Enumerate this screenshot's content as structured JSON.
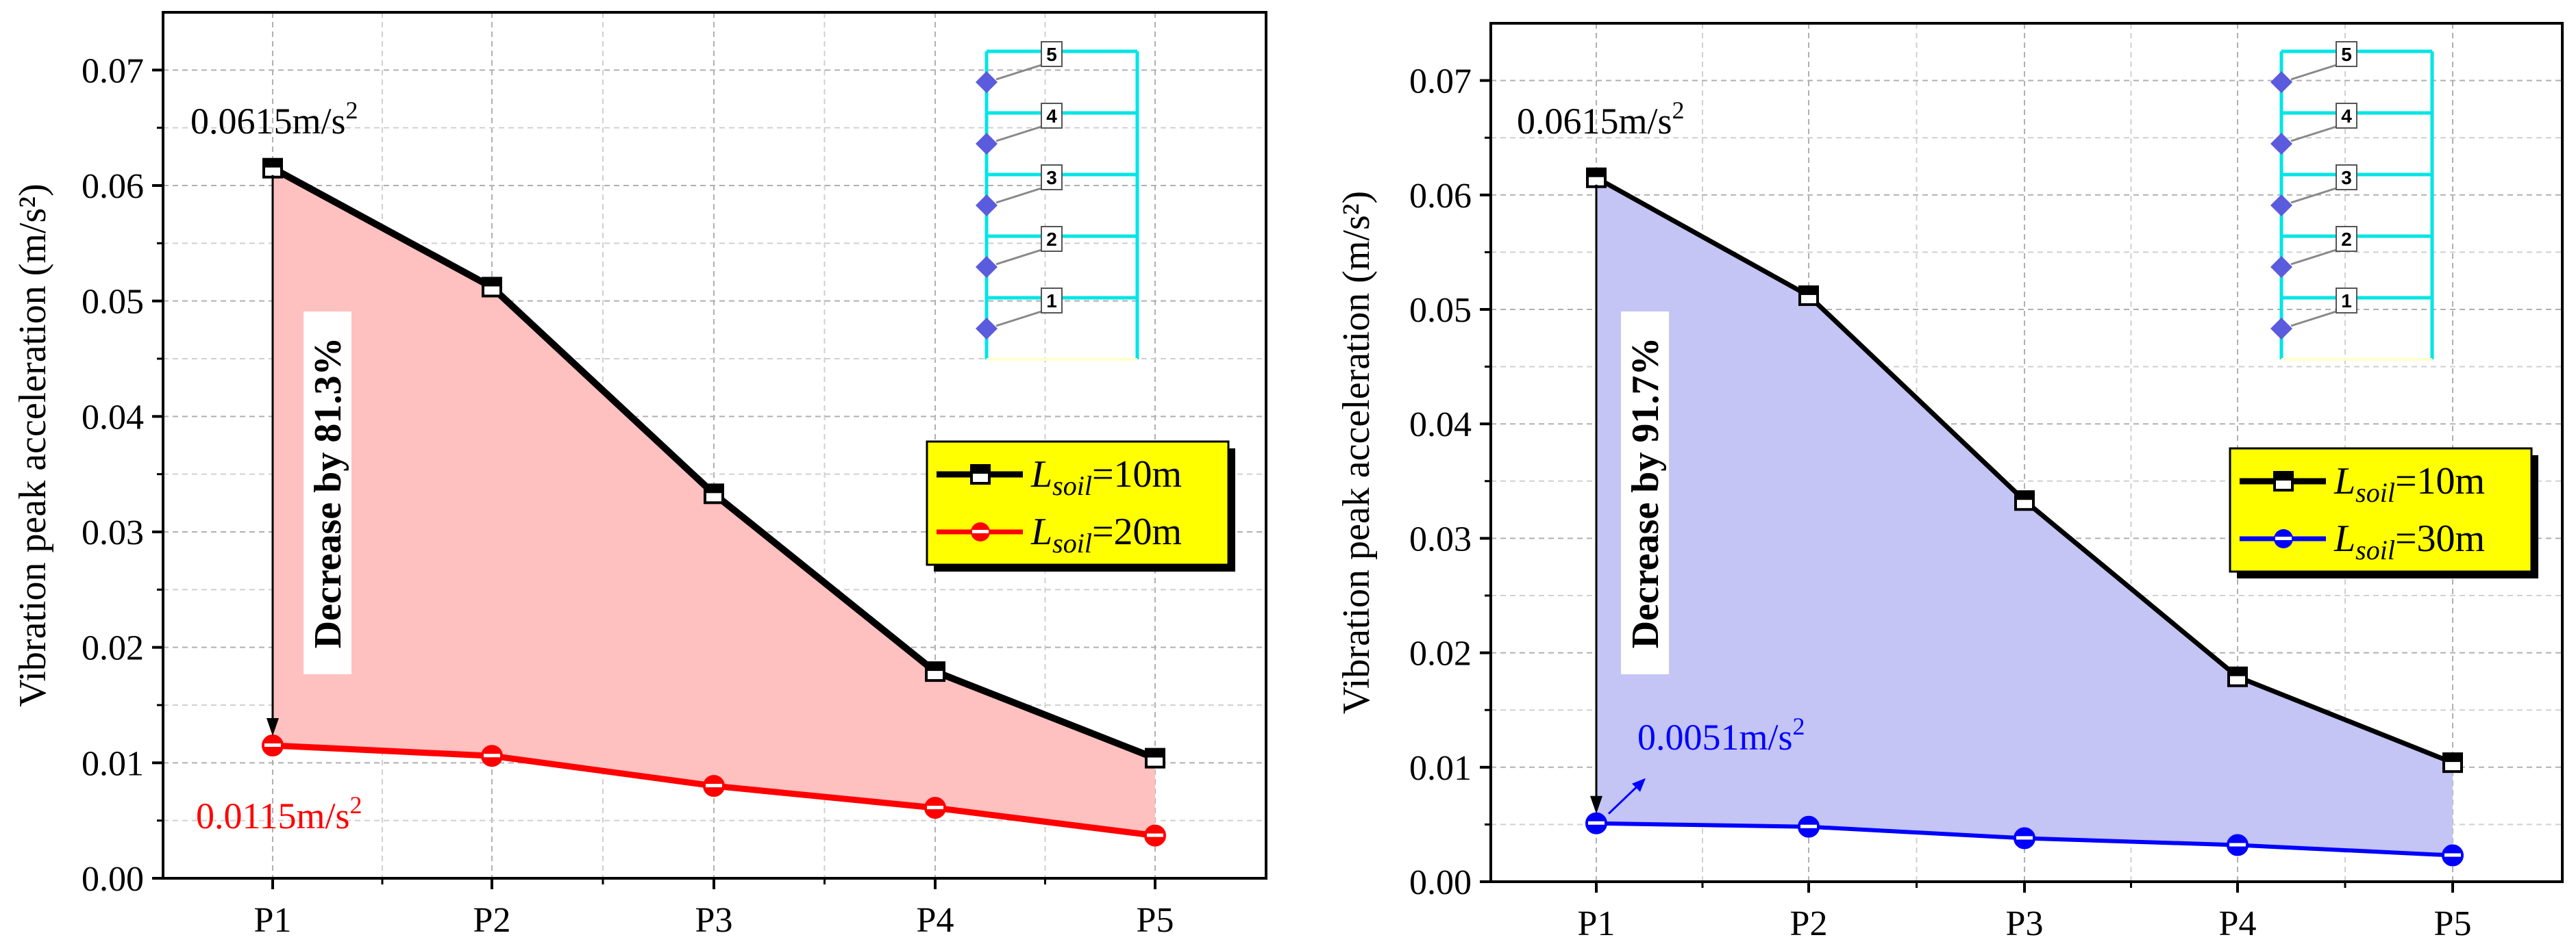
{
  "chart_data": [
    {
      "type": "area",
      "ylabel": "Vibration peak acceleration (m/s²)",
      "ylim": [
        0,
        0.075
      ],
      "yticks": [
        0.0,
        0.01,
        0.02,
        0.03,
        0.04,
        0.05,
        0.06,
        0.07
      ],
      "ytick_labels": [
        "0.00",
        "0.01",
        "0.02",
        "0.03",
        "0.04",
        "0.05",
        "0.06",
        "0.07"
      ],
      "categories": [
        "P1",
        "P2",
        "P3",
        "P4",
        "P5"
      ],
      "grid": true,
      "fill_color": "#ffc0c0",
      "series": [
        {
          "name": "L_soil=10m",
          "legend_main": "L",
          "legend_sub": "soil",
          "legend_rest": "=10m",
          "values": [
            0.0615,
            0.0512,
            0.0333,
            0.0179,
            0.0104
          ],
          "color": "#000000",
          "marker": "half-square"
        },
        {
          "name": "L_soil=20m",
          "legend_main": "L",
          "legend_sub": "soil",
          "legend_rest": "=20m",
          "values": [
            0.0115,
            0.0106,
            0.008,
            0.0061,
            0.0037
          ],
          "color": "#ff0000",
          "marker": "circle"
        }
      ],
      "legend_position": "right",
      "legend_bg": "#ffff00",
      "annotations": {
        "top_value": "0.0615m/s",
        "top_sup": "2",
        "bottom_value": "0.0115m/s",
        "bottom_sup": "2",
        "bottom_color": "#ff0000",
        "decrease_text": "Decrease by 81.3%"
      },
      "inset_labels": [
        "5",
        "4",
        "3",
        "2",
        "1"
      ]
    },
    {
      "type": "area",
      "ylabel": "Vibration peak acceleration (m/s²)",
      "ylim": [
        0,
        0.075
      ],
      "yticks": [
        0.0,
        0.01,
        0.02,
        0.03,
        0.04,
        0.05,
        0.06,
        0.07
      ],
      "ytick_labels": [
        "0.00",
        "0.01",
        "0.02",
        "0.03",
        "0.04",
        "0.05",
        "0.06",
        "0.07"
      ],
      "categories": [
        "P1",
        "P2",
        "P3",
        "P4",
        "P5"
      ],
      "grid": true,
      "fill_color": "#c4c4f5",
      "series": [
        {
          "name": "L_soil=10m",
          "legend_main": "L",
          "legend_sub": "soil",
          "legend_rest": "=10m",
          "values": [
            0.0615,
            0.0512,
            0.0333,
            0.0179,
            0.0104
          ],
          "color": "#000000",
          "marker": "half-square"
        },
        {
          "name": "L_soil=30m",
          "legend_main": "L",
          "legend_sub": "soil",
          "legend_rest": "=30m",
          "values": [
            0.0051,
            0.0048,
            0.0038,
            0.0032,
            0.0023
          ],
          "color": "#0000ff",
          "marker": "circle"
        }
      ],
      "legend_position": "right",
      "legend_bg": "#ffff00",
      "annotations": {
        "top_value": "0.0615m/s",
        "top_sup": "2",
        "bottom_value": "0.0051m/s",
        "bottom_sup": "2",
        "bottom_color": "#0000ff",
        "decrease_text": "Decrease by 91.7%"
      },
      "inset_labels": [
        "5",
        "4",
        "3",
        "2",
        "1"
      ]
    }
  ]
}
